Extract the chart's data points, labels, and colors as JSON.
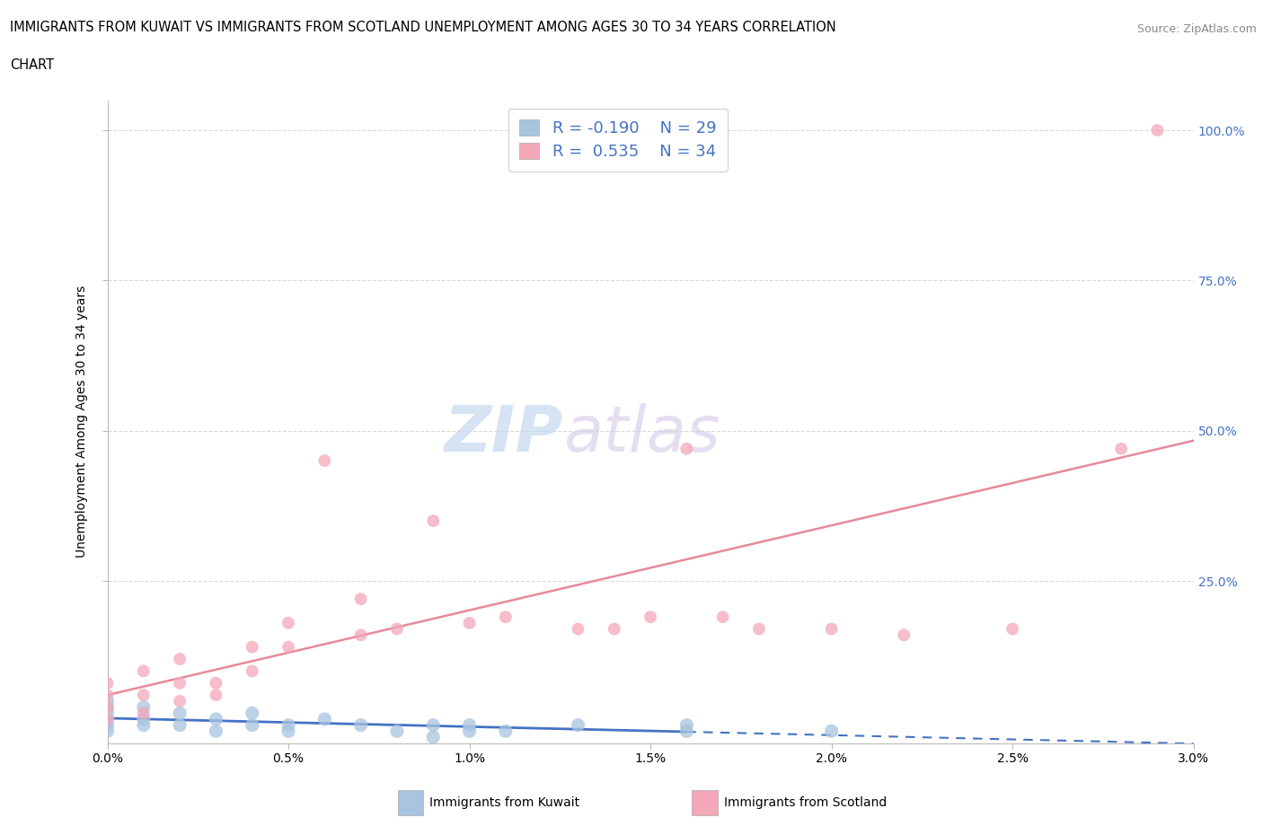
{
  "title_line1": "IMMIGRANTS FROM KUWAIT VS IMMIGRANTS FROM SCOTLAND UNEMPLOYMENT AMONG AGES 30 TO 34 YEARS CORRELATION",
  "title_line2": "CHART",
  "source": "Source: ZipAtlas.com",
  "ylabel": "Unemployment Among Ages 30 to 34 years",
  "xlim": [
    0.0,
    0.03
  ],
  "ylim": [
    -0.02,
    1.05
  ],
  "xtick_labels": [
    "0.0%",
    "0.5%",
    "1.0%",
    "1.5%",
    "2.0%",
    "2.5%",
    "3.0%"
  ],
  "xtick_values": [
    0.0,
    0.005,
    0.01,
    0.015,
    0.02,
    0.025,
    0.03
  ],
  "ytick_values": [
    0.25,
    0.5,
    0.75,
    1.0
  ],
  "kuwait_color": "#a8c4e0",
  "scotland_color": "#f4a7b9",
  "kuwait_line_color": "#4472c4",
  "scotland_line_color": "#e8899a",
  "kuwait_R": -0.19,
  "kuwait_N": 29,
  "scotland_R": 0.535,
  "scotland_N": 34,
  "kuwait_x": [
    0.0,
    0.0,
    0.0,
    0.0,
    0.0,
    0.0,
    0.001,
    0.001,
    0.001,
    0.002,
    0.002,
    0.003,
    0.003,
    0.004,
    0.004,
    0.005,
    0.005,
    0.006,
    0.007,
    0.008,
    0.009,
    0.009,
    0.01,
    0.01,
    0.011,
    0.013,
    0.016,
    0.016,
    0.02
  ],
  "kuwait_y": [
    0.0,
    0.01,
    0.02,
    0.03,
    0.04,
    0.05,
    0.01,
    0.02,
    0.04,
    0.01,
    0.03,
    0.0,
    0.02,
    0.01,
    0.03,
    0.0,
    0.01,
    0.02,
    0.01,
    0.0,
    0.01,
    -0.01,
    0.0,
    0.01,
    0.0,
    0.01,
    0.0,
    0.01,
    0.0
  ],
  "scotland_x": [
    0.0,
    0.0,
    0.0,
    0.0,
    0.001,
    0.001,
    0.001,
    0.002,
    0.002,
    0.002,
    0.003,
    0.003,
    0.004,
    0.004,
    0.005,
    0.005,
    0.006,
    0.007,
    0.007,
    0.008,
    0.009,
    0.01,
    0.011,
    0.013,
    0.014,
    0.015,
    0.016,
    0.017,
    0.018,
    0.02,
    0.022,
    0.025,
    0.028,
    0.029
  ],
  "scotland_y": [
    0.02,
    0.04,
    0.06,
    0.08,
    0.03,
    0.06,
    0.1,
    0.05,
    0.08,
    0.12,
    0.06,
    0.08,
    0.1,
    0.14,
    0.14,
    0.18,
    0.45,
    0.22,
    0.16,
    0.17,
    0.35,
    0.18,
    0.19,
    0.17,
    0.17,
    0.19,
    0.47,
    0.19,
    0.17,
    0.17,
    0.16,
    0.17,
    0.47,
    1.0
  ],
  "watermark_zip": "ZIP",
  "watermark_atlas": "atlas",
  "background_color": "#ffffff",
  "grid_color": "#d8d8d8",
  "legend_label_color": "#4472c4"
}
